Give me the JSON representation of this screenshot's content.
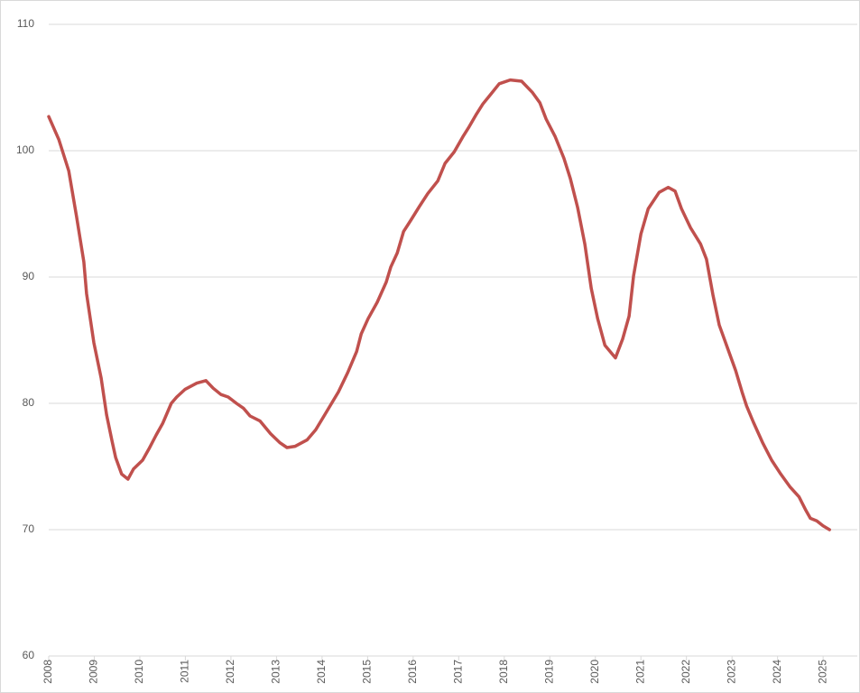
{
  "chart_data": {
    "type": "line",
    "x": [
      2008.0,
      2008.22,
      2008.44,
      2008.61,
      2008.77,
      2008.83,
      2008.99,
      2009.15,
      2009.27,
      2009.39,
      2009.47,
      2009.6,
      2009.74,
      2009.86,
      2010.06,
      2010.2,
      2010.36,
      2010.5,
      2010.69,
      2010.81,
      2010.99,
      2011.25,
      2011.45,
      2011.61,
      2011.78,
      2011.94,
      2012.12,
      2012.28,
      2012.42,
      2012.64,
      2012.87,
      2013.07,
      2013.23,
      2013.41,
      2013.67,
      2013.86,
      2014.06,
      2014.36,
      2014.56,
      2014.76,
      2014.86,
      2015.01,
      2015.21,
      2015.41,
      2015.51,
      2015.65,
      2015.79,
      2015.95,
      2016.14,
      2016.32,
      2016.54,
      2016.7,
      2016.9,
      2017.09,
      2017.23,
      2017.39,
      2017.53,
      2017.69,
      2017.89,
      2018.13,
      2018.38,
      2018.62,
      2018.78,
      2018.92,
      2019.12,
      2019.31,
      2019.45,
      2019.61,
      2019.77,
      2019.91,
      2020.05,
      2020.21,
      2020.44,
      2020.6,
      2020.74,
      2020.84,
      2021.0,
      2021.16,
      2021.4,
      2021.6,
      2021.75,
      2021.89,
      2022.09,
      2022.31,
      2022.44,
      2022.58,
      2022.72,
      2022.88,
      2023.08,
      2023.22,
      2023.32,
      2023.47,
      2023.67,
      2023.87,
      2024.07,
      2024.27,
      2024.47,
      2024.61,
      2024.72,
      2024.86,
      2025.0,
      2025.14
    ],
    "series": [
      {
        "color": "#c0504d",
        "values": [
          102.7,
          100.9,
          98.4,
          94.8,
          91.2,
          88.7,
          84.8,
          82.0,
          79.1,
          77.0,
          75.7,
          74.4,
          74.0,
          74.8,
          75.5,
          76.4,
          77.5,
          78.4,
          80.0,
          80.5,
          81.1,
          81.6,
          81.8,
          81.2,
          80.7,
          80.5,
          80.0,
          79.6,
          79.0,
          78.6,
          77.6,
          76.9,
          76.5,
          76.6,
          77.1,
          77.9,
          79.1,
          80.9,
          82.4,
          84.1,
          85.5,
          86.7,
          88.0,
          89.6,
          90.8,
          91.9,
          93.6,
          94.5,
          95.6,
          96.6,
          97.6,
          99.0,
          99.9,
          101.1,
          101.9,
          102.9,
          103.7,
          104.4,
          105.3,
          105.6,
          105.5,
          104.6,
          103.8,
          102.5,
          101.1,
          99.4,
          97.8,
          95.5,
          92.6,
          89.1,
          86.7,
          84.6,
          83.6,
          85.1,
          86.9,
          90.1,
          93.4,
          95.4,
          96.7,
          97.1,
          96.8,
          95.4,
          93.9,
          92.6,
          91.4,
          88.6,
          86.2,
          84.6,
          82.6,
          80.9,
          79.8,
          78.5,
          76.9,
          75.5,
          74.4,
          73.4,
          72.6,
          71.6,
          70.9,
          70.7,
          70.3,
          70.0
        ]
      }
    ],
    "xlim": [
      2008,
      2025.75
    ],
    "xticks": [
      2008,
      2009,
      2010,
      2011,
      2012,
      2013,
      2014,
      2015,
      2016,
      2017,
      2018,
      2019,
      2020,
      2021,
      2022,
      2023,
      2024,
      2025
    ],
    "ylim": [
      60,
      110
    ],
    "yticks": [
      60,
      70,
      80,
      90,
      100,
      110
    ],
    "grid": true
  }
}
